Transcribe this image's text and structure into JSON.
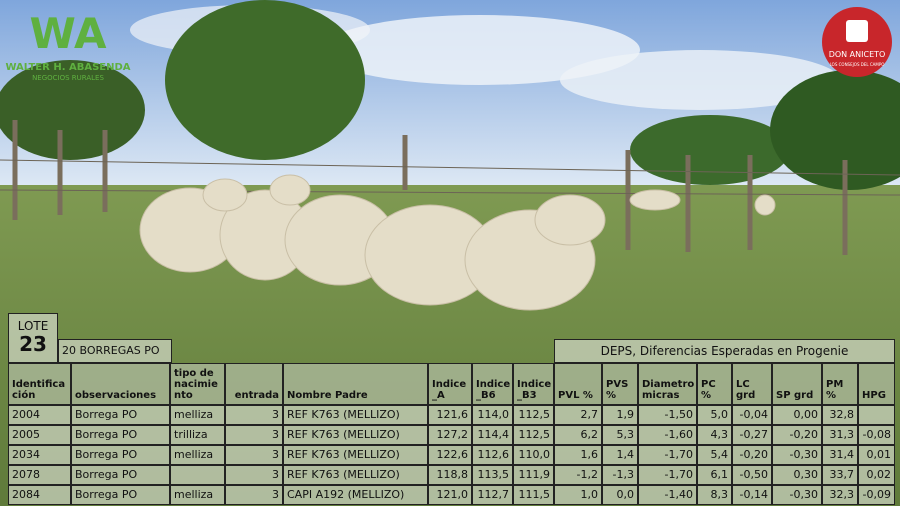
{
  "logo": {
    "mark": "WA",
    "name": "WALTER H. ABASENDA",
    "tagline": "NEGOCIOS RURALES"
  },
  "channel": {
    "name": "DON ANICETO",
    "tagline": "LOS CONSEJOS DEL CAMPO"
  },
  "lot": {
    "label": "LOTE",
    "number": "23",
    "description": "20 BORREGAS PO"
  },
  "table": {
    "group_header": "DEPS, Diferencias Esperadas en Progenie",
    "header": [
      "Identifica\nción",
      "observaciones",
      "tipo de\nnacimie\nnto",
      "entrada",
      "Nombre Padre",
      "Indice\n_A",
      "Indice\n_B6",
      "Indice\n_B3",
      "PVL %",
      "PVS\n%",
      "Diametro\nmicras",
      "PC\n%",
      "LC\ngrd",
      "SP grd",
      "PM\n%",
      "HPG"
    ],
    "rows": [
      [
        "2004",
        "Borrega PO",
        "melliza",
        "3",
        "REF K763 (MELLIZO)",
        "121,6",
        "114,0",
        "112,5",
        "2,7",
        "1,9",
        "-1,50",
        "5,0",
        "-0,04",
        "0,00",
        "32,8",
        null
      ],
      [
        "2005",
        "Borrega PO",
        "trilliza",
        "3",
        "REF K763 (MELLIZO)",
        "127,2",
        "114,4",
        "112,5",
        "6,2",
        "5,3",
        "-1,60",
        "4,3",
        "-0,27",
        "-0,20",
        "31,3",
        "-0,08"
      ],
      [
        "2034",
        "Borrega PO",
        "melliza",
        "3",
        "REF K763 (MELLIZO)",
        "122,6",
        "112,6",
        "110,0",
        "1,6",
        "1,4",
        "-1,70",
        "5,4",
        "-0,20",
        "-0,30",
        "31,4",
        "0,01"
      ],
      [
        "2078",
        "Borrega PO",
        null,
        "3",
        "REF K763 (MELLIZO)",
        "118,8",
        "113,5",
        "111,9",
        "-1,2",
        "-1,3",
        "-1,70",
        "6,1",
        "-0,50",
        "0,30",
        "33,7",
        "0,02"
      ],
      [
        "2084",
        "Borrega PO",
        "melliza",
        "3",
        "CAPI A192 (MELLIZO)",
        "121,0",
        "112,7",
        "111,5",
        "1,0",
        "0,0",
        "-1,40",
        "8,3",
        "-0,14",
        "-0,30",
        "32,3",
        "-0,09"
      ]
    ]
  }
}
